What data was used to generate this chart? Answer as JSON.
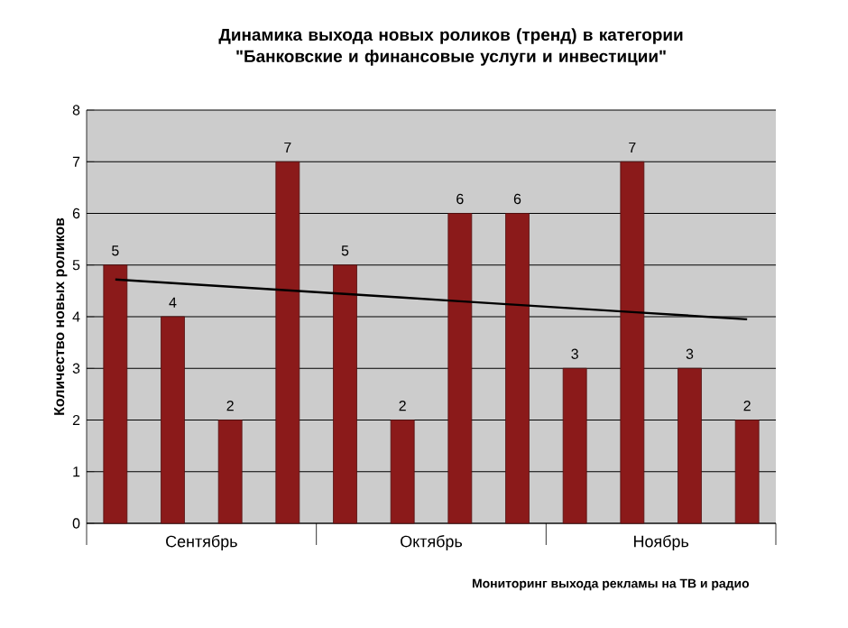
{
  "chart_data": {
    "type": "bar",
    "title": "Динамика выхода новых роликов (тренд) в категории \"Банковские и финансовые услуги и инвестиции\"",
    "ylabel": "Количество новых роликов",
    "categories": [
      null,
      null,
      null,
      null,
      null,
      null,
      null,
      null,
      null,
      null,
      null,
      null
    ],
    "series": [
      {
        "color": "#8b1a1a",
        "values": [
          5,
          4,
          2,
          7,
          5,
          2,
          6,
          6,
          3,
          7,
          3,
          2
        ],
        "value_labels": [
          "5",
          "4",
          "2",
          "7",
          "5",
          "2",
          "6",
          "6",
          "3",
          "7",
          "3",
          "2"
        ]
      },
      {
        "type": "line",
        "color": "#000000",
        "values": [
          4.72,
          4.65,
          4.58,
          4.51,
          4.44,
          4.37,
          4.3,
          4.23,
          4.16,
          4.09,
          4.02,
          3.95
        ]
      }
    ],
    "ylim": [
      0,
      8
    ],
    "yticks": [
      0,
      1,
      2,
      3,
      4,
      5,
      6,
      7,
      8
    ],
    "grid": "y",
    "annotations": [
      "Сентябрь",
      "Октябрь",
      "Ноябрь",
      "Мониторинг выхода рекламы на ТВ и радио"
    ]
  }
}
